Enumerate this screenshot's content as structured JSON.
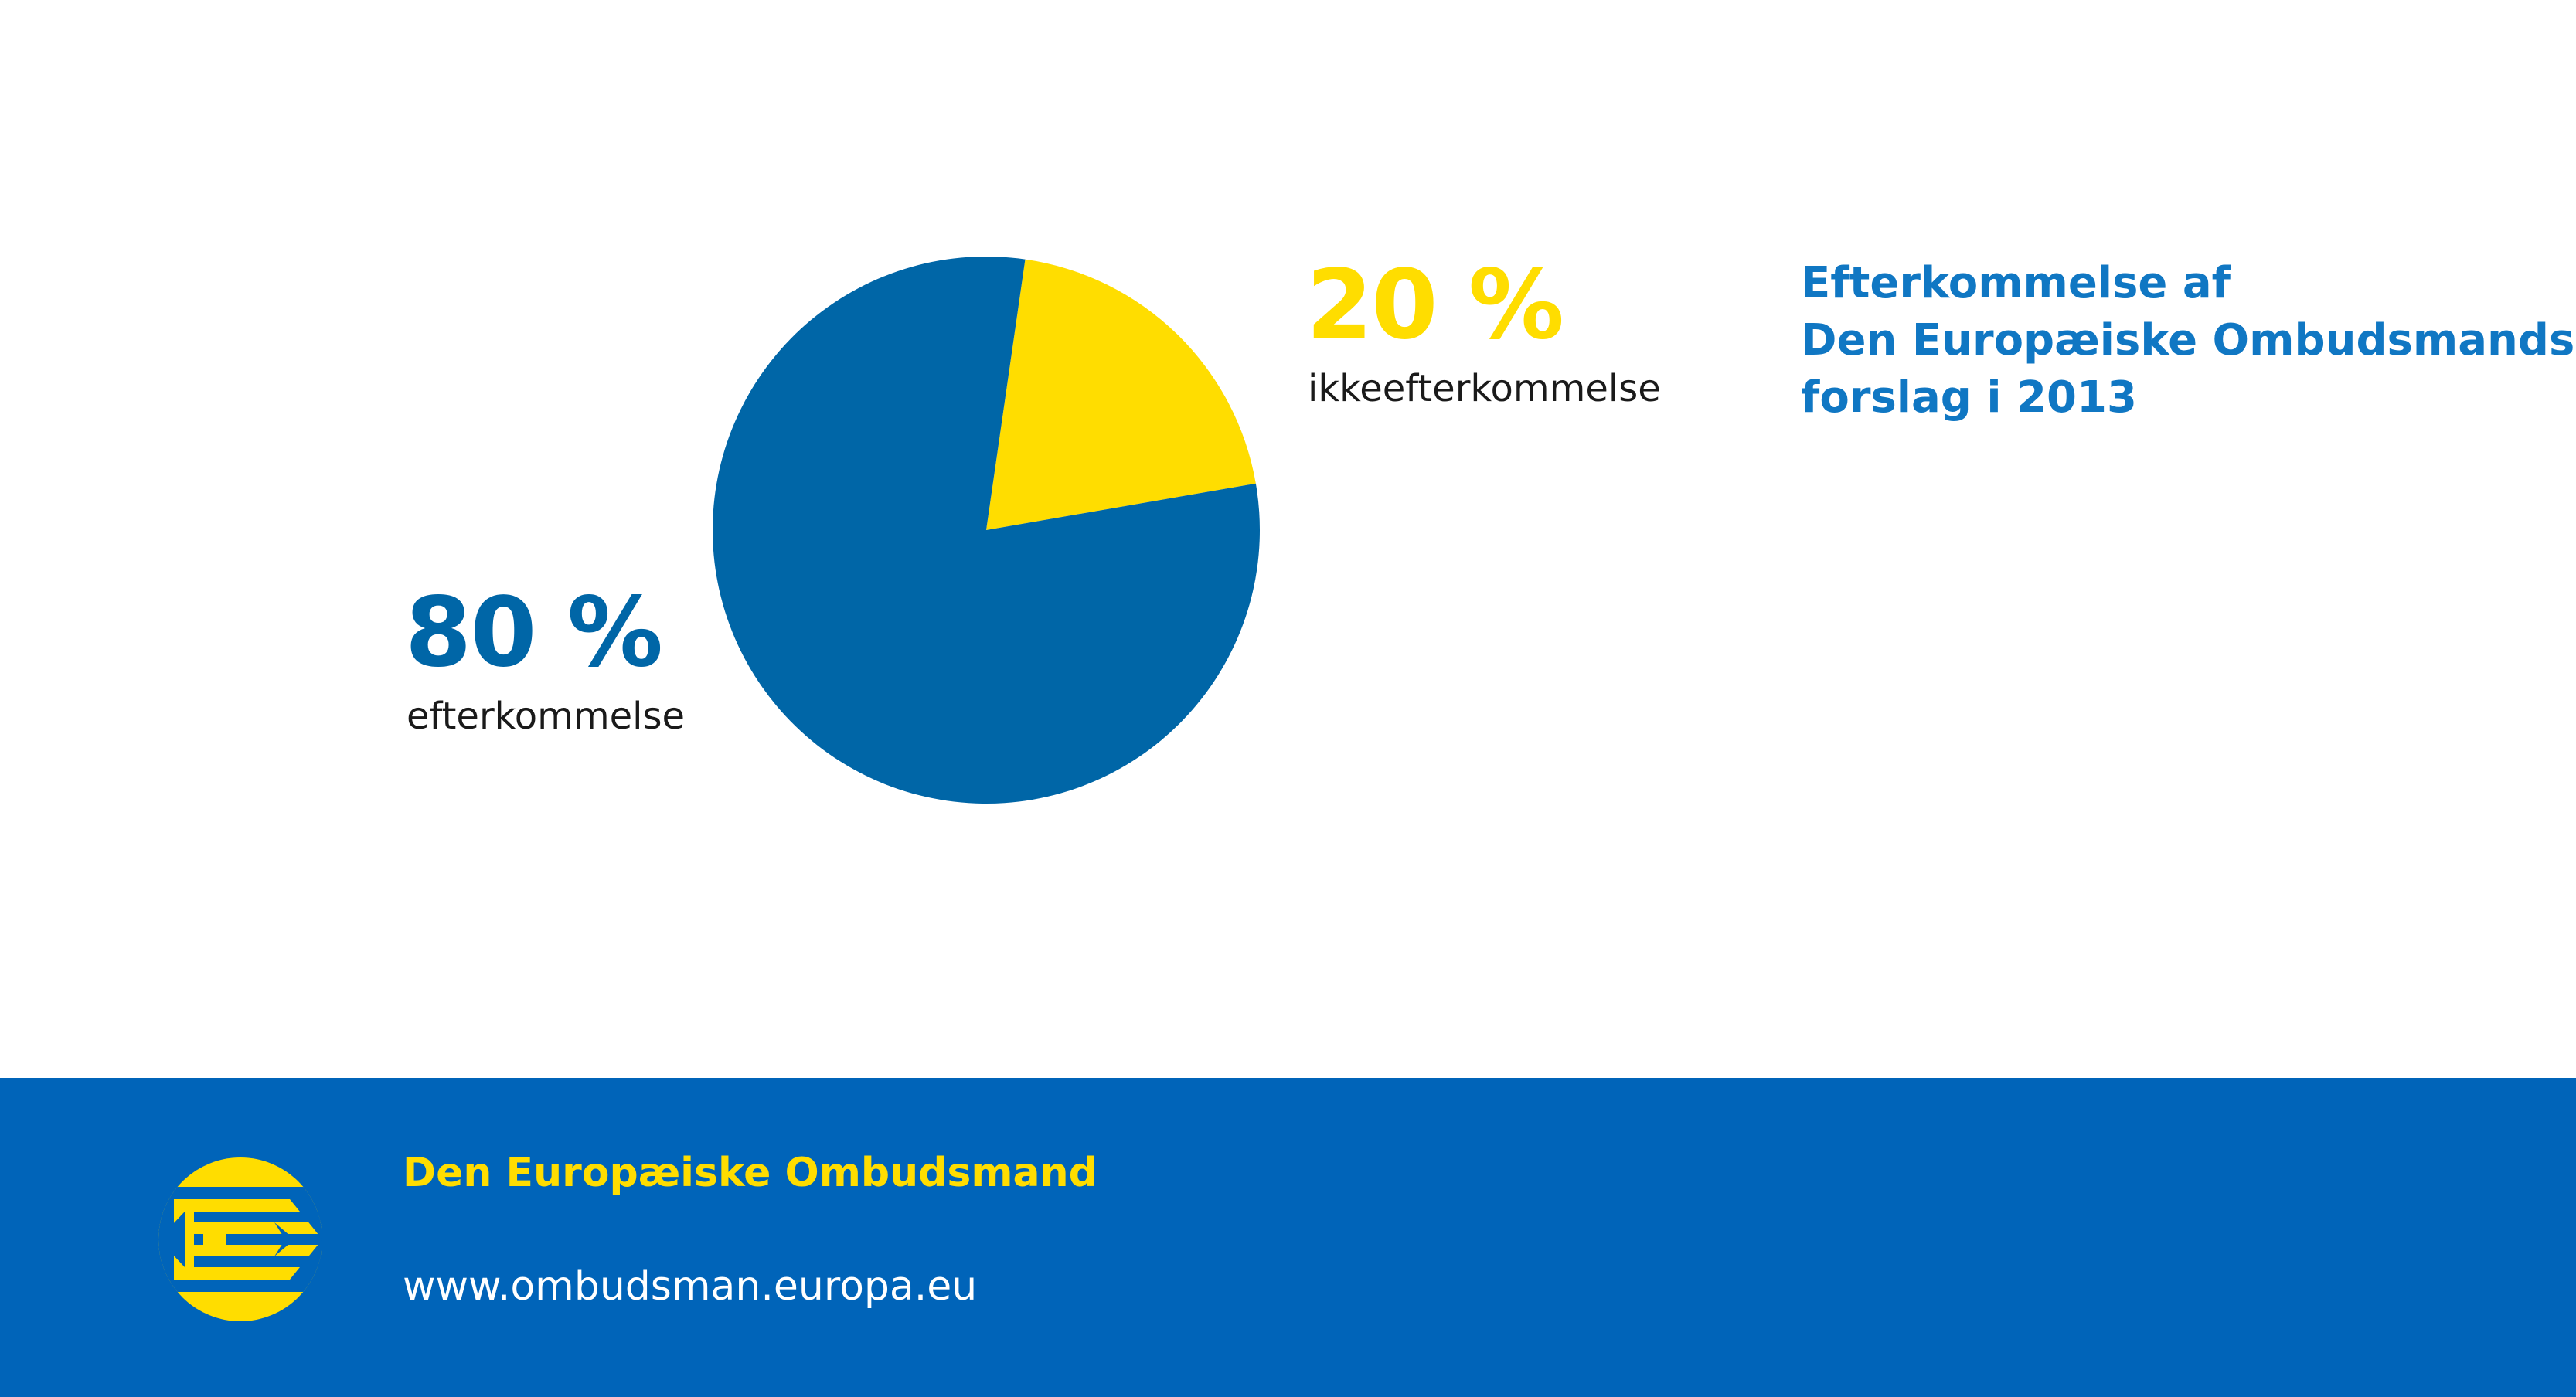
{
  "colors": {
    "blue": "#0066A7",
    "yellow": "#FFDD00",
    "title_blue": "#1077C3",
    "footer_blue": "#0064B9"
  },
  "chart_data": {
    "type": "pie",
    "title_lines": [
      "Efterkommelse af",
      "Den Europæiske Ombudsmands",
      "forslag i 2013"
    ],
    "slices": [
      {
        "label": "ikkeefterkommelse",
        "value": 20,
        "value_label": "20 %",
        "color": "#FFDD00"
      },
      {
        "label": "efterkommelse",
        "value": 80,
        "value_label": "80 %",
        "color": "#0066A7"
      }
    ]
  },
  "footer": {
    "org_name": "Den Europæiske Ombudsmand",
    "url": "www.ombudsman.europa.eu",
    "logo_icon": "european-ombudsman-logo-icon"
  }
}
